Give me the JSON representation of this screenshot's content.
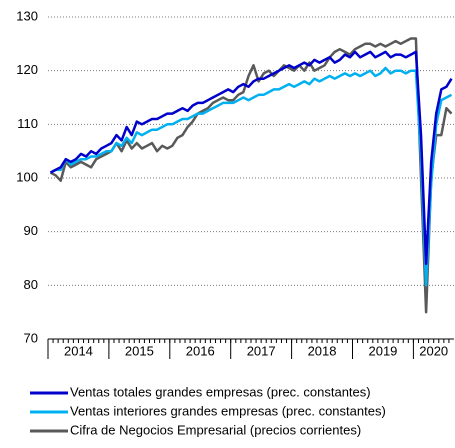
{
  "chart_data": {
    "type": "line",
    "categories": [
      null,
      null,
      null,
      null,
      null,
      null,
      null,
      null,
      null,
      null,
      null,
      null,
      null,
      null,
      null,
      null,
      null,
      null,
      null,
      null,
      null,
      null,
      null,
      null,
      null,
      null,
      null,
      null,
      null,
      null,
      null,
      null,
      null,
      null,
      null,
      null,
      null,
      null,
      null,
      null,
      null,
      null,
      null,
      null,
      null,
      null,
      null,
      null,
      null,
      null,
      null,
      null,
      null,
      null,
      null,
      null,
      null,
      null,
      null,
      null,
      null,
      null,
      null,
      null,
      null,
      null,
      null,
      null,
      null,
      null,
      null,
      null,
      null,
      null,
      null,
      null,
      null,
      null,
      null,
      null
    ],
    "year_groups": [
      "2014",
      "2015",
      "2016",
      "2017",
      "2018",
      "2019",
      "2020"
    ],
    "ylim": [
      70,
      130
    ],
    "yticks": [
      70,
      80,
      90,
      100,
      110,
      120,
      130
    ],
    "grid": true,
    "series": [
      {
        "name": "Ventas totales grandes empresas (prec. constantes)",
        "color": "#0000cc",
        "values": [
          101,
          101.5,
          102,
          103.5,
          103,
          103.5,
          104.5,
          104,
          105,
          104.5,
          105.5,
          106,
          106.5,
          108,
          107,
          109.5,
          108,
          110.5,
          110,
          110.5,
          111,
          111,
          111.5,
          112,
          112,
          112.5,
          113,
          112.5,
          113.5,
          114,
          114,
          114.5,
          115,
          115.5,
          116,
          116.5,
          116,
          117,
          117.5,
          117,
          118,
          118.5,
          118.5,
          119,
          119.5,
          120,
          120.5,
          121,
          120.5,
          121,
          121.5,
          121,
          122,
          121.5,
          122,
          122.5,
          121.5,
          122,
          123,
          122.5,
          123.5,
          122.5,
          123,
          123.5,
          122.5,
          123,
          123.5,
          122.5,
          123,
          123,
          122.5,
          123,
          123.5,
          108,
          84,
          103,
          112,
          116.5,
          117,
          118.5
        ]
      },
      {
        "name": "Ventas interiores grandes empresas (prec. constantes)",
        "color": "#00b0f0",
        "values": [
          101,
          101.5,
          101.5,
          103.5,
          102.5,
          103,
          103.5,
          103.5,
          104,
          104,
          104.5,
          105,
          105,
          106.5,
          106,
          107.5,
          106.5,
          108.5,
          108,
          108.5,
          109,
          109,
          109.5,
          110,
          110,
          110.5,
          111,
          111,
          111.5,
          112,
          112,
          112.5,
          113,
          113.5,
          114,
          114,
          114,
          114.5,
          115,
          114.5,
          115,
          115.5,
          115.5,
          116,
          116.5,
          116.5,
          117,
          117.5,
          117,
          117.5,
          118,
          117.5,
          118.5,
          118,
          118.5,
          119,
          118.5,
          119,
          119.5,
          119,
          119.5,
          119,
          119.5,
          120,
          119,
          119.5,
          120.5,
          119.5,
          120,
          120,
          119.5,
          120,
          120,
          104,
          80,
          99,
          110,
          114.5,
          115,
          115.5
        ]
      },
      {
        "name": "Cifra de Negocios Empresarial (precios corrientes)",
        "color": "#595959",
        "values": [
          101,
          100.5,
          99.5,
          103,
          102,
          102.5,
          103,
          102.5,
          102,
          103.5,
          104,
          104.5,
          105,
          106.5,
          105,
          107,
          105.5,
          106.5,
          105.5,
          106,
          106.5,
          105,
          106,
          105.5,
          106,
          107.5,
          108,
          109.5,
          110.5,
          112,
          112.5,
          113,
          114,
          114.5,
          115,
          114.5,
          114.5,
          115.5,
          116,
          119,
          121,
          118,
          119.5,
          120,
          119,
          120,
          121,
          120.5,
          120,
          121,
          120,
          121.5,
          120,
          120.5,
          121,
          122.5,
          123.5,
          124,
          123.5,
          123,
          124,
          124.5,
          125,
          125,
          124.5,
          125,
          124.5,
          125,
          125.5,
          125,
          125.5,
          126,
          126,
          100,
          75,
          100,
          108,
          108,
          113,
          112
        ]
      }
    ]
  }
}
